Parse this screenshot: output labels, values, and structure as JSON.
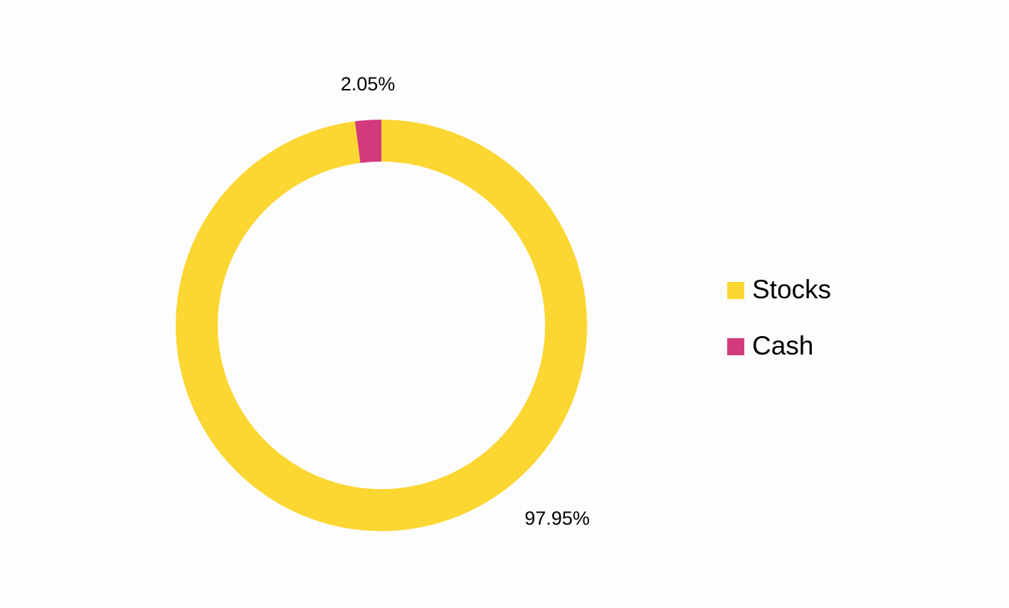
{
  "chart_data": {
    "type": "donut",
    "categories": [
      "Stocks",
      "Cash"
    ],
    "values": [
      97.95,
      2.05
    ],
    "value_labels": [
      "97.95%",
      "2.05%"
    ],
    "colors": [
      "#fcd631",
      "#d33a7b"
    ],
    "legend": "right"
  }
}
